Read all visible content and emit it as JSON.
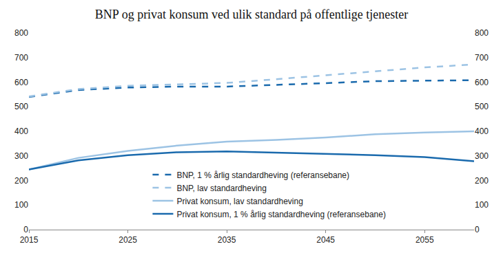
{
  "chart_data": {
    "type": "line",
    "title": "BNP og privat konsum ved ulik standard på offentlige tjenester",
    "x": [
      2015,
      2020,
      2025,
      2030,
      2035,
      2040,
      2045,
      2050,
      2055,
      2060
    ],
    "series": [
      {
        "name": "BNP, 1 % årlig standardheving (referansebane)",
        "color": "#1a6aad",
        "line_style": "dash",
        "values": [
          540,
          568,
          578,
          582,
          582,
          588,
          596,
          604,
          606,
          608
        ]
      },
      {
        "name": "BNP, lav standardheving",
        "color": "#9cc3e4",
        "line_style": "dash",
        "values": [
          542,
          572,
          585,
          592,
          597,
          612,
          628,
          646,
          660,
          672
        ]
      },
      {
        "name": "Privat konsum, lav standardheving",
        "color": "#9cc3e4",
        "line_style": "solid",
        "values": [
          245,
          292,
          320,
          342,
          358,
          365,
          375,
          388,
          395,
          400
        ]
      },
      {
        "name": "Privat konsum, 1 % årlig standardheving (referansebane)",
        "color": "#1a6aad",
        "line_style": "solid",
        "values": [
          245,
          282,
          303,
          315,
          318,
          313,
          308,
          303,
          295,
          278
        ]
      }
    ],
    "xlim": [
      2015,
      2060
    ],
    "xticks": [
      2015,
      2025,
      2035,
      2045,
      2055
    ],
    "ylim": [
      0,
      800
    ],
    "yticks": [
      0,
      100,
      200,
      300,
      400,
      500,
      600,
      700,
      800
    ],
    "y2lim": [
      0,
      800
    ],
    "y2ticks": [
      0,
      100,
      200,
      300,
      400,
      500,
      600,
      700,
      800
    ],
    "grid": false,
    "legend": "bottom"
  }
}
